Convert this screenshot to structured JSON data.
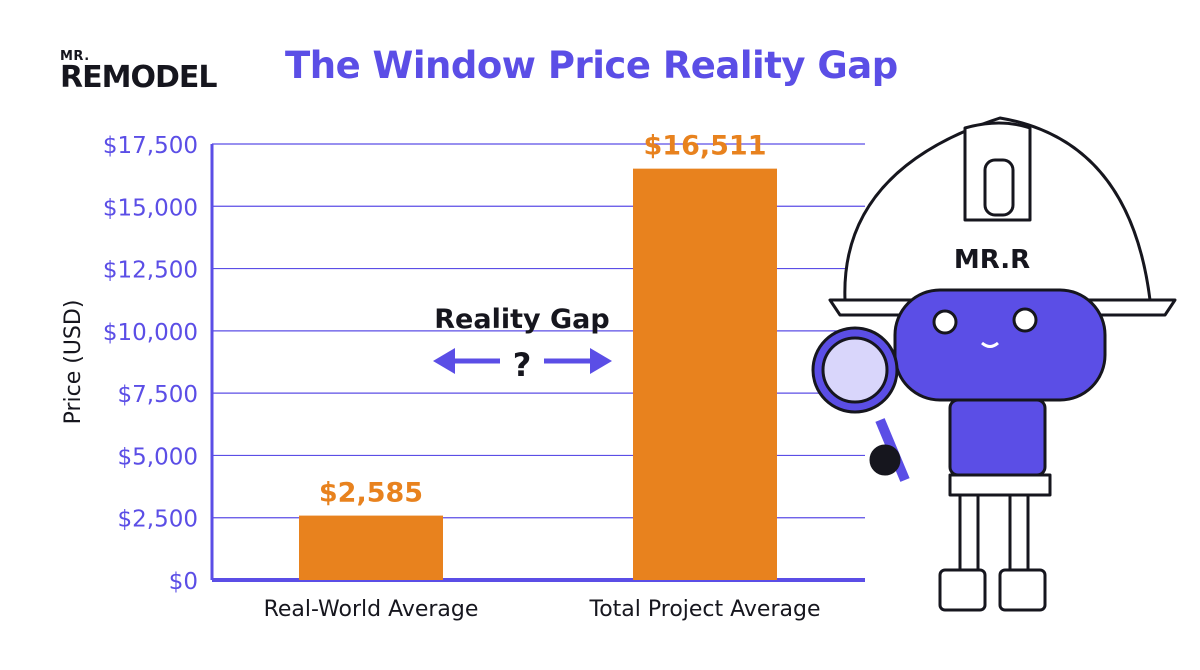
{
  "logo": {
    "prefix": "MR.",
    "name": "REMODEL"
  },
  "chart_data": {
    "type": "bar",
    "title": "The Window Price Reality Gap",
    "ylabel": "Price (USD)",
    "xlabel": "",
    "categories": [
      "Real-World Average",
      "Total Project Average"
    ],
    "values": [
      2585,
      16511
    ],
    "data_labels": [
      "$2,585",
      "$16,511"
    ],
    "ylim": [
      0,
      17500
    ],
    "yticks": [
      0,
      2500,
      5000,
      7500,
      10000,
      12500,
      15000,
      17500
    ],
    "ytick_labels": [
      "$0",
      "$2,500",
      "$5,000",
      "$7,500",
      "$10,000",
      "$12,500",
      "$15,000",
      "$17,500"
    ],
    "grid": true,
    "annotation": {
      "text": "Reality Gap",
      "symbol": "?"
    },
    "colors": {
      "bar": "#e8821e",
      "accent": "#5b4ee6",
      "text": "#16161e"
    }
  },
  "mascot": {
    "helmet_text": "MR.R",
    "icon": "robot-with-magnifying-glass"
  }
}
